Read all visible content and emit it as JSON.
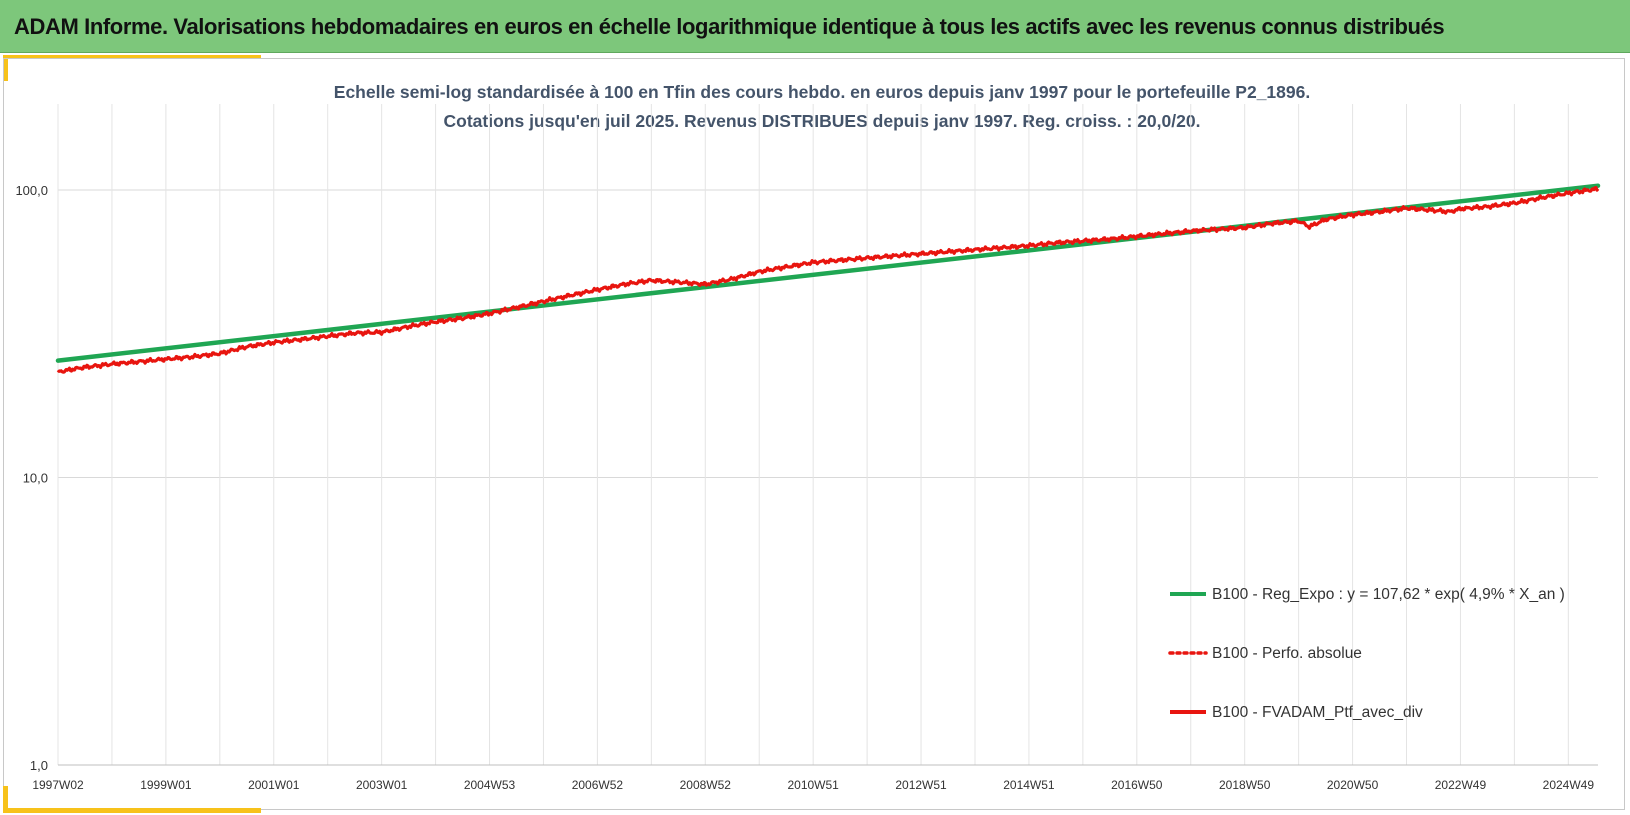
{
  "header": {
    "title": "ADAM Informe. Valorisations hebdomadaires en euros en échelle logarithmique identique à tous les actifs avec les revenus connus distribués"
  },
  "colors": {
    "header_bg": "#7dc77b",
    "accent": "#f7c21a",
    "subtitle": "#44546a",
    "series_regression": "#1fa653",
    "series_portfolio": "#e8150f"
  },
  "chart_data": {
    "type": "line",
    "title": "Echelle semi-log standardisée  à 100 en Tfin des cours hebdo.  en euros depuis janv 1997 pour  le portefeuille P2_1896.",
    "subtitle": "Cotations  jusqu'en juil 2025. Revenus DISTRIBUES depuis janv 1997. Reg. croiss. : 20,0/20.",
    "xlabel": "",
    "ylabel": "",
    "y_scale": "log",
    "ylim": [
      1,
      200
    ],
    "y_ticks": [
      {
        "value": 1,
        "label": "1,0"
      },
      {
        "value": 10,
        "label": "10,0"
      },
      {
        "value": 100,
        "label": "100,0"
      }
    ],
    "x_range": [
      1997.0,
      2025.55
    ],
    "x_tick_labels": [
      {
        "x": 1997.0,
        "label": "1997W02"
      },
      {
        "x": 1999.0,
        "label": "1999W01"
      },
      {
        "x": 2001.0,
        "label": "2001W01"
      },
      {
        "x": 2003.0,
        "label": "2003W01"
      },
      {
        "x": 2005.0,
        "label": "2004W53"
      },
      {
        "x": 2007.0,
        "label": "2006W52"
      },
      {
        "x": 2009.0,
        "label": "2008W52"
      },
      {
        "x": 2011.0,
        "label": "2010W51"
      },
      {
        "x": 2013.0,
        "label": "2012W51"
      },
      {
        "x": 2015.0,
        "label": "2014W51"
      },
      {
        "x": 2017.0,
        "label": "2016W50"
      },
      {
        "x": 2019.0,
        "label": "2018W50"
      },
      {
        "x": 2021.0,
        "label": "2020W50"
      },
      {
        "x": 2023.0,
        "label": "2022W49"
      },
      {
        "x": 2025.0,
        "label": "2024W49"
      }
    ],
    "grid": true,
    "legend_position": "bottom-right",
    "series": [
      {
        "name": "B100 - Reg_Expo : y = 107,62 * exp( 4,9% *  X_an )",
        "style": "solid",
        "color": "#1fa653",
        "points": [
          [
            1997.0,
            25.5
          ],
          [
            2025.55,
            103.5
          ]
        ]
      },
      {
        "name": "B100 - Perfo. absolue",
        "style": "dotted",
        "color": "#e8150f",
        "points": []
      },
      {
        "name": "B100 - FVADAM_Ptf_avec_div",
        "style": "solid",
        "color": "#e8150f",
        "points": [
          [
            1997.0,
            23.3
          ],
          [
            1997.5,
            24.2
          ],
          [
            1998.0,
            24.8
          ],
          [
            1998.5,
            25.3
          ],
          [
            1999.0,
            25.8
          ],
          [
            1999.5,
            26.3
          ],
          [
            2000.0,
            27.0
          ],
          [
            2000.5,
            28.5
          ],
          [
            2001.0,
            29.5
          ],
          [
            2001.5,
            30.2
          ],
          [
            2002.0,
            31.0
          ],
          [
            2002.5,
            31.8
          ],
          [
            2003.0,
            32.0
          ],
          [
            2003.5,
            33.5
          ],
          [
            2004.0,
            34.8
          ],
          [
            2004.5,
            35.8
          ],
          [
            2005.0,
            37.2
          ],
          [
            2005.5,
            39.0
          ],
          [
            2006.0,
            41.0
          ],
          [
            2006.5,
            43.0
          ],
          [
            2007.0,
            45.0
          ],
          [
            2007.5,
            47.0
          ],
          [
            2008.0,
            48.5
          ],
          [
            2008.5,
            47.8
          ],
          [
            2009.0,
            47.0
          ],
          [
            2009.5,
            49.0
          ],
          [
            2010.0,
            52.0
          ],
          [
            2010.5,
            54.0
          ],
          [
            2011.0,
            56.0
          ],
          [
            2011.5,
            57.0
          ],
          [
            2012.0,
            58.0
          ],
          [
            2012.5,
            59.0
          ],
          [
            2013.0,
            60.0
          ],
          [
            2013.5,
            61.0
          ],
          [
            2014.0,
            62.0
          ],
          [
            2014.5,
            63.0
          ],
          [
            2015.0,
            64.0
          ],
          [
            2015.5,
            65.5
          ],
          [
            2016.0,
            66.5
          ],
          [
            2016.5,
            67.5
          ],
          [
            2017.0,
            69.0
          ],
          [
            2017.5,
            70.5
          ],
          [
            2018.0,
            72.0
          ],
          [
            2018.5,
            73.0
          ],
          [
            2019.0,
            74.0
          ],
          [
            2019.5,
            76.5
          ],
          [
            2020.0,
            78.0
          ],
          [
            2020.2,
            74.5
          ],
          [
            2020.5,
            79.0
          ],
          [
            2021.0,
            82.0
          ],
          [
            2021.5,
            84.0
          ],
          [
            2022.0,
            86.5
          ],
          [
            2022.5,
            85.0
          ],
          [
            2022.8,
            84.0
          ],
          [
            2023.0,
            86.0
          ],
          [
            2023.5,
            87.5
          ],
          [
            2024.0,
            90.0
          ],
          [
            2024.5,
            94.0
          ],
          [
            2025.0,
            97.5
          ],
          [
            2025.55,
            101.0
          ]
        ]
      }
    ]
  }
}
